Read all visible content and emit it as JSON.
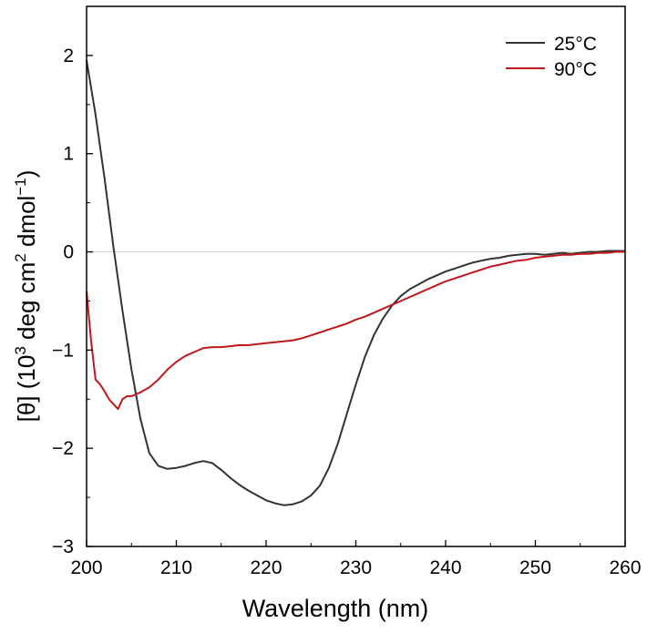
{
  "chart_data": {
    "type": "line",
    "title": "",
    "xlabel": "Wavelength (nm)",
    "ylabel": {
      "prefix": "[θ] (10",
      "exp1": "3",
      "mid": " deg cm",
      "exp2": "2",
      "suffix": " dmol",
      "exp3": "−1",
      "close": ")"
    },
    "xlim": [
      200,
      260
    ],
    "ylim": [
      -3,
      2.5
    ],
    "xticks": [
      200,
      210,
      220,
      230,
      240,
      250,
      260
    ],
    "xtick_labels": [
      "200",
      "210",
      "220",
      "230",
      "240",
      "250",
      "260"
    ],
    "yticks": [
      -3,
      -2,
      -1,
      0,
      1,
      2
    ],
    "ytick_labels": [
      "−3",
      "−2",
      "−1",
      "0",
      "1",
      "2"
    ],
    "zero_line": true,
    "legend_position": "top-right",
    "series": [
      {
        "name": "25°C",
        "color": "#333333",
        "x": [
          200,
          201,
          202,
          203,
          204,
          205,
          206,
          207,
          208,
          209,
          210,
          211,
          212,
          213,
          214,
          215,
          216,
          217,
          218,
          219,
          220,
          221,
          222,
          223,
          224,
          225,
          226,
          227,
          228,
          229,
          230,
          231,
          232,
          233,
          234,
          235,
          236,
          237,
          238,
          239,
          240,
          241,
          242,
          243,
          244,
          245,
          246,
          247,
          248,
          249,
          250,
          251,
          252,
          253,
          254,
          255,
          256,
          257,
          258,
          259,
          260
        ],
        "y": [
          1.95,
          1.4,
          0.75,
          0.05,
          -0.6,
          -1.2,
          -1.7,
          -2.05,
          -2.18,
          -2.21,
          -2.2,
          -2.18,
          -2.15,
          -2.13,
          -2.15,
          -2.22,
          -2.3,
          -2.37,
          -2.43,
          -2.48,
          -2.53,
          -2.56,
          -2.58,
          -2.57,
          -2.54,
          -2.48,
          -2.38,
          -2.2,
          -1.95,
          -1.65,
          -1.35,
          -1.07,
          -0.85,
          -0.68,
          -0.55,
          -0.45,
          -0.38,
          -0.33,
          -0.28,
          -0.24,
          -0.2,
          -0.17,
          -0.14,
          -0.11,
          -0.09,
          -0.07,
          -0.06,
          -0.04,
          -0.03,
          -0.02,
          -0.02,
          -0.03,
          -0.02,
          -0.01,
          -0.02,
          -0.01,
          0.0,
          0.0,
          0.01,
          0.01,
          0.01
        ]
      },
      {
        "name": "90°C",
        "color": "#c0181d",
        "x": [
          200,
          200.5,
          201,
          201.5,
          202,
          202.5,
          203,
          203.5,
          204,
          204.5,
          205,
          205.5,
          206,
          207,
          208,
          209,
          210,
          211,
          212,
          213,
          214,
          215,
          216,
          217,
          218,
          219,
          220,
          221,
          222,
          223,
          224,
          225,
          226,
          227,
          228,
          229,
          230,
          231,
          232,
          233,
          234,
          235,
          236,
          237,
          238,
          239,
          240,
          241,
          242,
          243,
          244,
          245,
          246,
          247,
          248,
          249,
          250,
          251,
          252,
          253,
          254,
          255,
          256,
          257,
          258,
          259,
          260
        ],
        "y": [
          -0.4,
          -0.9,
          -1.3,
          -1.35,
          -1.42,
          -1.5,
          -1.55,
          -1.6,
          -1.5,
          -1.47,
          -1.47,
          -1.45,
          -1.43,
          -1.38,
          -1.3,
          -1.2,
          -1.12,
          -1.06,
          -1.02,
          -0.98,
          -0.97,
          -0.97,
          -0.96,
          -0.95,
          -0.95,
          -0.94,
          -0.93,
          -0.92,
          -0.91,
          -0.9,
          -0.88,
          -0.85,
          -0.82,
          -0.79,
          -0.76,
          -0.73,
          -0.69,
          -0.66,
          -0.62,
          -0.58,
          -0.54,
          -0.5,
          -0.46,
          -0.42,
          -0.38,
          -0.34,
          -0.3,
          -0.27,
          -0.24,
          -0.21,
          -0.18,
          -0.15,
          -0.13,
          -0.11,
          -0.09,
          -0.08,
          -0.06,
          -0.05,
          -0.04,
          -0.03,
          -0.03,
          -0.02,
          -0.02,
          -0.01,
          -0.01,
          0.0,
          0.0
        ]
      }
    ]
  }
}
